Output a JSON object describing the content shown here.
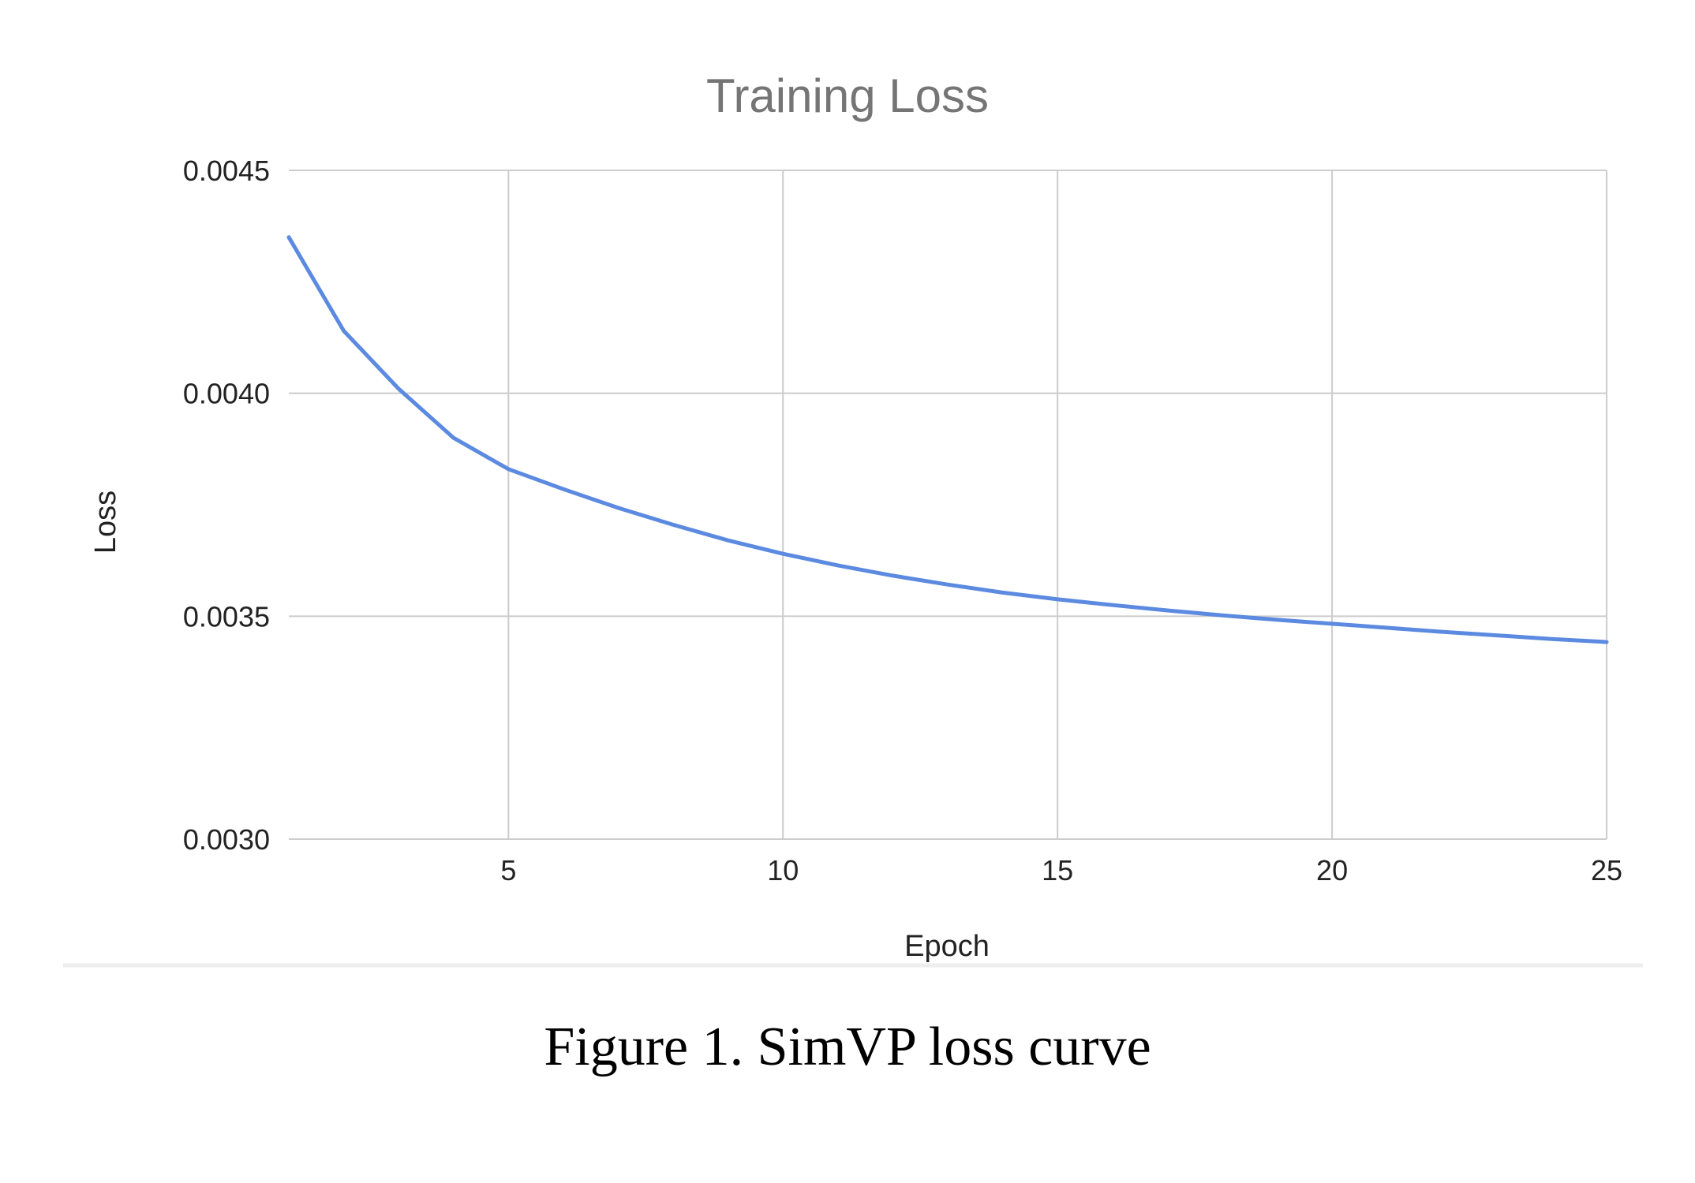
{
  "caption": "Figure 1. SimVP loss curve",
  "colors": {
    "line": "#5b8ae0",
    "grid": "#cccccc",
    "title": "#757575",
    "separator": "#eeeeee"
  },
  "chart_data": {
    "type": "line",
    "title": "Training Loss",
    "xlabel": "Epoch",
    "ylabel": "Loss",
    "xlim": [
      1,
      25
    ],
    "ylim": [
      0.003,
      0.0045
    ],
    "x_ticks": [
      5,
      10,
      15,
      20,
      25
    ],
    "x_tick_labels": [
      "5",
      "10",
      "15",
      "20",
      "25"
    ],
    "y_ticks": [
      0.003,
      0.0035,
      0.004,
      0.0045
    ],
    "y_tick_labels": [
      "0.0030",
      "0.0035",
      "0.0040",
      "0.0045"
    ],
    "grid": true,
    "legend": "none",
    "series": [
      {
        "x": [
          1,
          2,
          3,
          4,
          5,
          6,
          7,
          8,
          9,
          10,
          11,
          12,
          13,
          14,
          15,
          16,
          17,
          18,
          19,
          20,
          21,
          22,
          23,
          24,
          25
        ],
        "values": [
          0.00435,
          0.00414,
          0.00401,
          0.0039,
          0.00383,
          0.003785,
          0.003743,
          0.003705,
          0.00367,
          0.00364,
          0.003614,
          0.003591,
          0.003571,
          0.003553,
          0.003538,
          0.003525,
          0.003513,
          0.003502,
          0.003492,
          0.003483,
          0.003474,
          0.003465,
          0.003457,
          0.003449,
          0.003442
        ]
      }
    ]
  }
}
